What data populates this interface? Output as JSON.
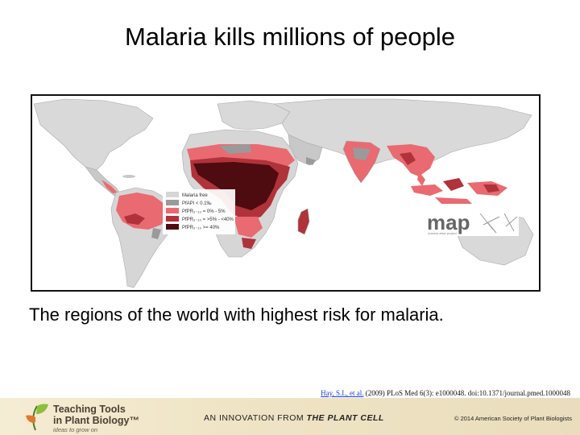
{
  "slide": {
    "title": "Malaria kills millions of people",
    "caption": "The regions of the world with highest risk for malaria."
  },
  "map": {
    "legend": [
      {
        "label": "Malaria free",
        "color": "#d6d6d6"
      },
      {
        "label": "PfAPI < 0.1‰",
        "color": "#9a9a9a"
      },
      {
        "label": "PfPR₂₋₁₀ = 0% - 5%",
        "color": "#e96a70"
      },
      {
        "label": "PfPR₂₋₁₀ = >5% - <40%",
        "color": "#b0323b"
      },
      {
        "label": "PfPR₂₋₁₀ >= 40%",
        "color": "#4e0b10"
      }
    ],
    "logo_text": "map",
    "logo_subtext": "malaria atlas project"
  },
  "citation": {
    "link_text": "Hay, S.I., et al.",
    "rest": " (2009) PLoS Med 6(3): e1000048. doi:10.1371/journal.pmed.1000048"
  },
  "footer": {
    "brand_line1": "Teaching Tools",
    "brand_line2": "in Plant Biology™",
    "tagline": "ideas to grow on",
    "innovation_prefix": "AN INNOVATION FROM ",
    "innovation_source": "THE PLANT CELL",
    "copyright": "© 2014 American Society of Plant Biologists"
  }
}
